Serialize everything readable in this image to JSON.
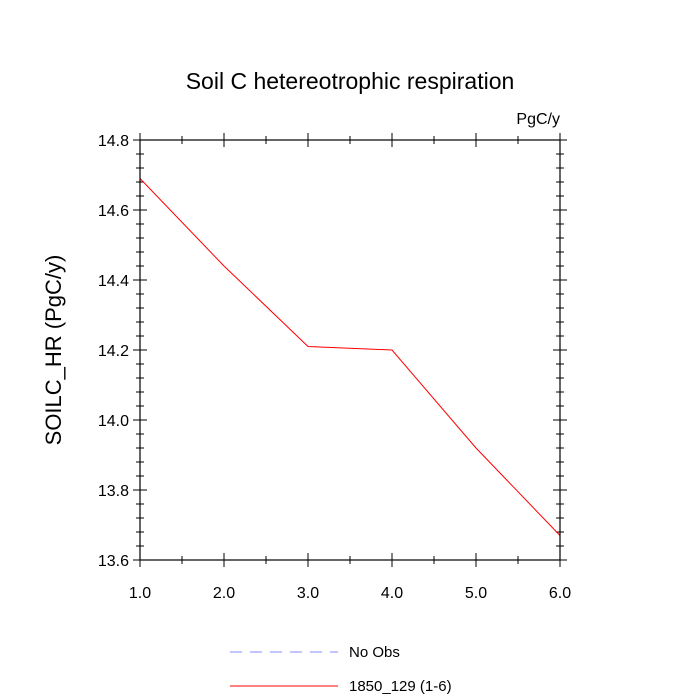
{
  "chart_data": {
    "type": "line",
    "title": "Soil C hetereotrophic respiration",
    "units_label": "PgC/y",
    "xlabel": "",
    "ylabel": "SOILC_HR  (PgC/y)",
    "xlim": [
      1.0,
      6.0
    ],
    "ylim": [
      13.6,
      14.8
    ],
    "x_ticks": [
      1.0,
      2.0,
      3.0,
      4.0,
      5.0,
      6.0
    ],
    "x_tick_labels": [
      "1.0",
      "2.0",
      "3.0",
      "4.0",
      "5.0",
      "6.0"
    ],
    "y_ticks": [
      13.6,
      13.8,
      14.0,
      14.2,
      14.4,
      14.6,
      14.8
    ],
    "y_tick_labels": [
      "13.6",
      "13.8",
      "14.0",
      "14.2",
      "14.4",
      "14.6",
      "14.8"
    ],
    "x_minor_step": 0.5,
    "y_minor_step": 0.04,
    "series": [
      {
        "name": "No Obs",
        "style": "dashed",
        "color": "#8c8cff",
        "x": [],
        "values": []
      },
      {
        "name": "1850_129 (1-6)",
        "style": "solid",
        "color": "#ff0000",
        "x": [
          1.0,
          2.0,
          3.0,
          4.0,
          5.0,
          6.0
        ],
        "values": [
          14.69,
          14.44,
          14.21,
          14.2,
          13.92,
          13.67
        ]
      }
    ]
  }
}
